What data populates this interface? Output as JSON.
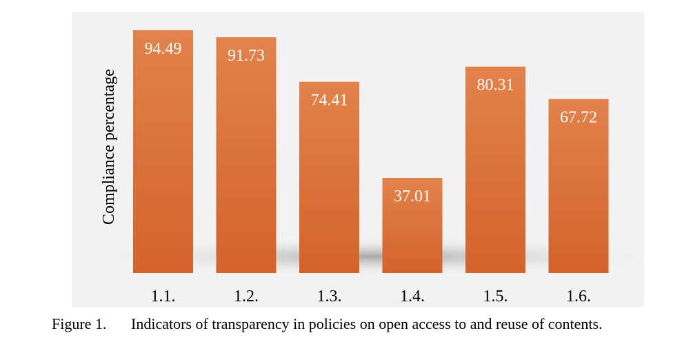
{
  "chart_data": {
    "type": "bar",
    "categories": [
      "1.1.",
      "1.2.",
      "1.3.",
      "1.4.",
      "1.5.",
      "1.6."
    ],
    "values": [
      94.49,
      91.73,
      74.41,
      37.01,
      80.31,
      67.72
    ],
    "value_labels": [
      "94.49",
      "91.73",
      "74.41",
      "37.01",
      "80.31",
      "67.72"
    ],
    "title": "",
    "xlabel": "",
    "ylabel": "Compliance percentage",
    "ylim": [
      0,
      100
    ],
    "grid": false,
    "colors": {
      "bar": "#e07b3f",
      "background": "#f2f2f2"
    }
  },
  "caption": {
    "number": "Figure 1.",
    "text": "Indicators of transparency in policies on open access to and reuse of contents."
  }
}
